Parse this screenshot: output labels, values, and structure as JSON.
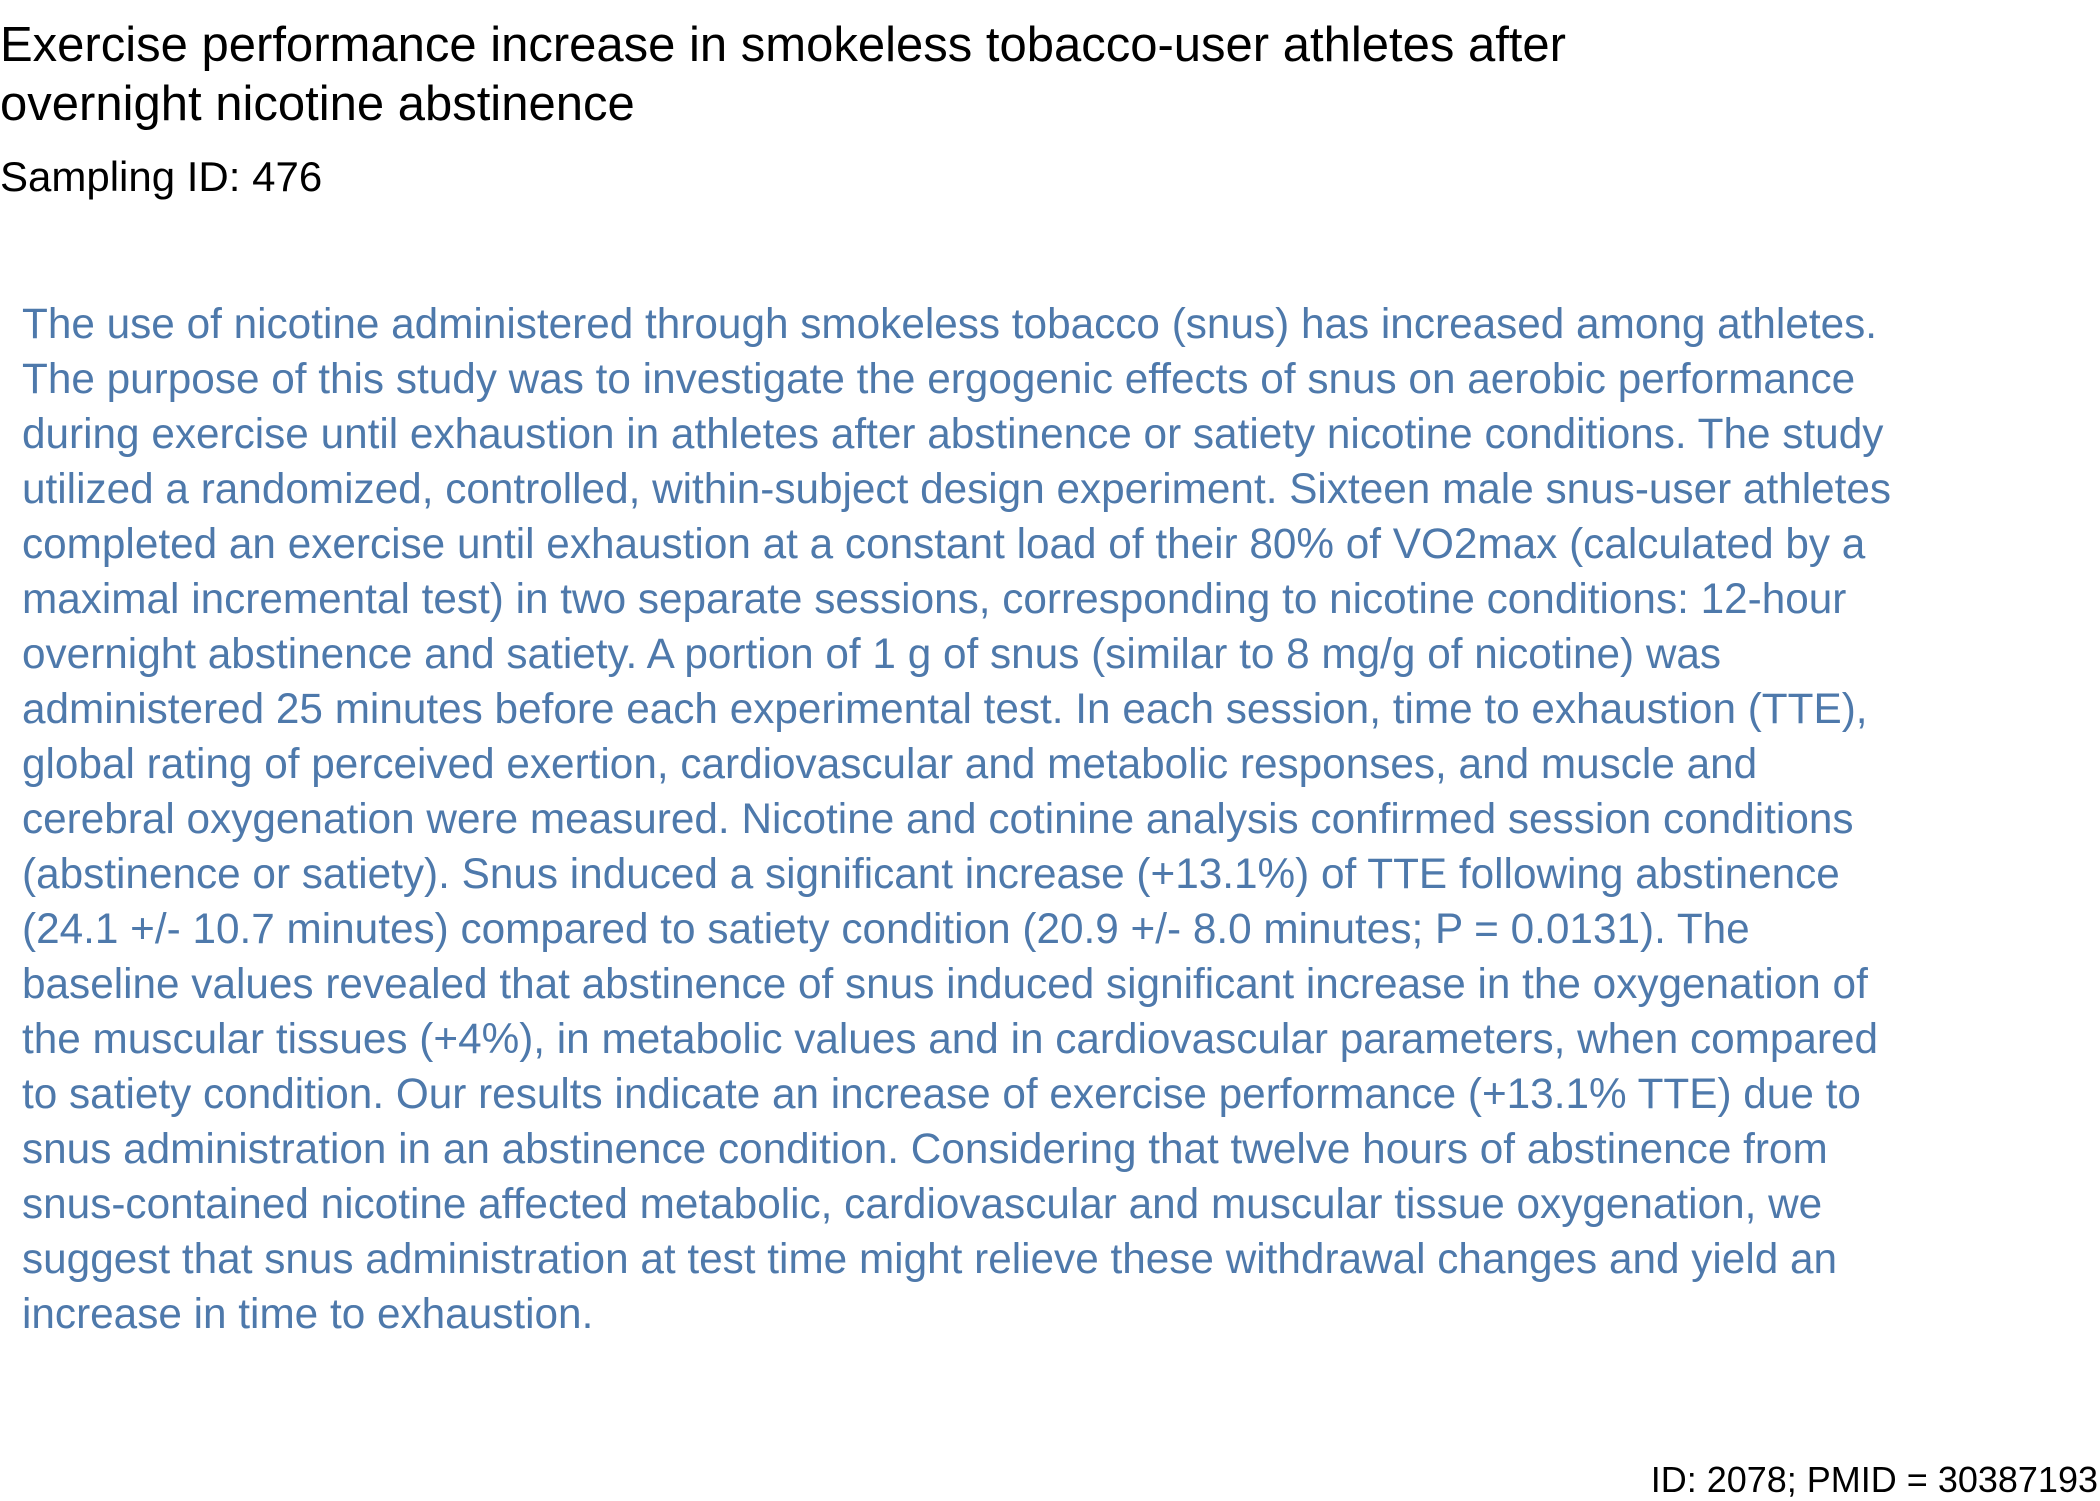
{
  "document": {
    "title": "Exercise performance increase in smokeless tobacco-user athletes after\novernight nicotine abstinence",
    "sampling_id": "Sampling ID: 476",
    "abstract": "The use of nicotine administered through smokeless tobacco (snus) has increased among athletes.\nThe purpose of this study was to investigate the ergogenic effects of snus on aerobic performance\nduring exercise until exhaustion in athletes after abstinence or satiety nicotine conditions. The study\nutilized a randomized, controlled, within-subject design experiment. Sixteen male snus-user athletes\ncompleted an exercise until exhaustion at a constant load of their 80% of VO2max (calculated by a\nmaximal incremental test) in two separate sessions, corresponding to nicotine conditions: 12-hour\novernight abstinence and satiety. A portion of 1 g of snus (similar to 8 mg/g of nicotine) was\nadministered 25 minutes before each experimental test. In each session, time to exhaustion (TTE),\nglobal rating of perceived exertion, cardiovascular and metabolic responses, and muscle and\ncerebral oxygenation were measured. Nicotine and cotinine analysis confirmed session conditions\n(abstinence or satiety). Snus induced a significant increase (+13.1%) of TTE following abstinence\n(24.1 +/- 10.7 minutes) compared to satiety condition (20.9 +/- 8.0 minutes; P = 0.0131). The\nbaseline values revealed that abstinence of snus induced significant increase in the oxygenation of\nthe muscular tissues (+4%), in metabolic values and in cardiovascular parameters, when compared\nto satiety condition. Our results indicate an increase of exercise performance (+13.1% TTE) due to\nsnus administration in an abstinence condition. Considering that twelve hours of abstinence from\nsnus-contained nicotine affected metabolic, cardiovascular and muscular tissue oxygenation, we\nsuggest that snus administration at test time might relieve these withdrawal changes and yield an\nincrease in time to exhaustion.",
    "footer_id": "ID: 2078; PMID = 30387193"
  },
  "colors": {
    "title_text": "#000000",
    "abstract_text": "#4e79ab",
    "background": "#ffffff"
  }
}
